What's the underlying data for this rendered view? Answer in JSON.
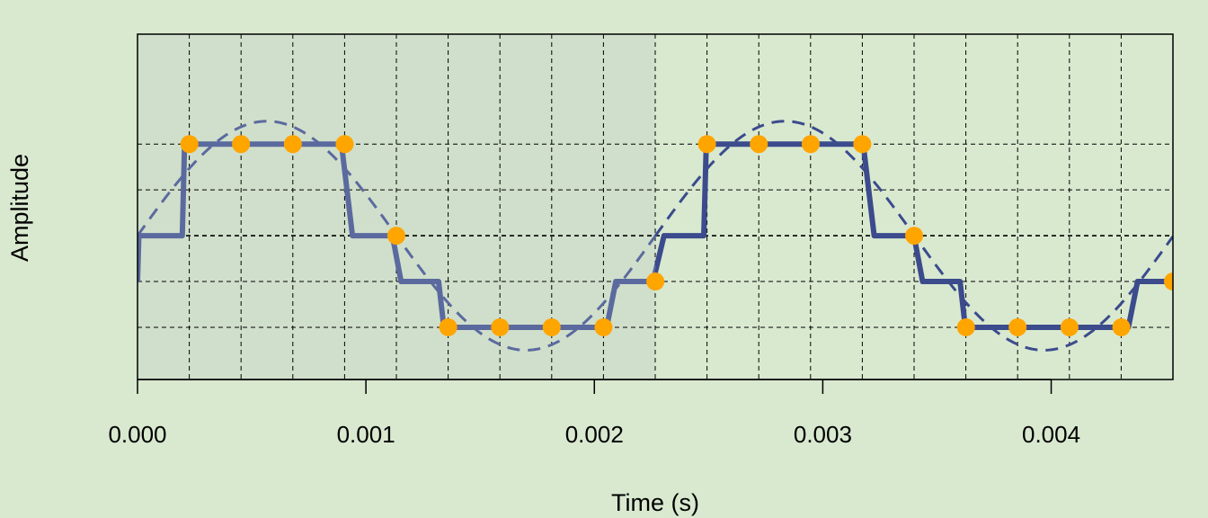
{
  "chart_data": {
    "type": "line",
    "title": "",
    "xlabel": "Time (s)",
    "ylabel": "Amplitude",
    "xlim": [
      0.0,
      0.004533
    ],
    "ylim": [
      -3.14,
      4.4
    ],
    "x_ticks": [
      0.0,
      0.001,
      0.002,
      0.003,
      0.004
    ],
    "x_tick_labels": [
      "0.000",
      "0.001",
      "0.002",
      "0.003",
      "0.004"
    ],
    "quantization_levels": [
      -2,
      -1,
      0,
      1,
      2
    ],
    "grid": true,
    "legend": "none",
    "shaded_interval": [
      0.0,
      0.002267
    ],
    "colors": {
      "background": "#d9e9d0",
      "shaded_region": "#d0dfcb",
      "signal": "#3b4b8c",
      "signal_shaded": "#5b6a9e",
      "samples": "#ffa500",
      "grid": "#000000"
    },
    "series": [
      {
        "type": "dashed-line",
        "function": "sine",
        "amplitude": 2.5,
        "frequency_hz": 441,
        "x": [
          0.0,
          0.000113,
          0.000227,
          0.00034,
          0.000453,
          0.000567,
          0.00068,
          0.000793,
          0.000907,
          0.00102,
          0.001133,
          0.001247,
          0.00136,
          0.001473,
          0.001587,
          0.0017,
          0.001813,
          0.001927,
          0.00204,
          0.002153,
          0.002267,
          0.00238,
          0.002493,
          0.002607,
          0.00272,
          0.002833,
          0.002947,
          0.00306,
          0.003173,
          0.003287,
          0.0034,
          0.003513,
          0.003627,
          0.00374,
          0.003853,
          0.003967,
          0.00408,
          0.004193,
          0.004307,
          0.00442,
          0.004533
        ],
        "y": [
          0.0,
          0.77,
          1.47,
          2.02,
          2.38,
          2.5,
          2.38,
          2.02,
          1.47,
          0.77,
          0.0,
          -0.77,
          -1.47,
          -2.02,
          -2.38,
          -2.5,
          -2.38,
          -2.02,
          -1.47,
          -0.77,
          0.0,
          0.77,
          1.47,
          2.02,
          2.38,
          2.5,
          2.38,
          2.02,
          1.47,
          0.77,
          0.0,
          -0.77,
          -1.47,
          -2.02,
          -2.38,
          -2.5,
          -2.38,
          -2.02,
          -1.47,
          -0.77,
          0.0
        ]
      },
      {
        "type": "quantized-step",
        "x": [
          0.0,
          5.8e-06,
          0.000196,
          0.000206,
          0.000893,
          0.000941,
          0.001116,
          0.001154,
          0.001318,
          0.001341,
          0.002054,
          0.002094,
          0.002257,
          0.002305,
          0.002479,
          0.00249,
          0.003177,
          0.003225,
          0.003399,
          0.003437,
          0.003601,
          0.003624,
          0.004338,
          0.004378,
          0.004533
        ],
        "y": [
          -1,
          0,
          0,
          2,
          2,
          0,
          0,
          -1,
          -1,
          -2,
          -2,
          -1,
          -1,
          0,
          0,
          2,
          2,
          0,
          0,
          -1,
          -1,
          -2,
          -2,
          -1,
          -1
        ]
      },
      {
        "type": "samples",
        "x": [
          0.000227,
          0.000453,
          0.00068,
          0.000907,
          0.001133,
          0.00136,
          0.001587,
          0.001813,
          0.00204,
          0.002267,
          0.002493,
          0.00272,
          0.002947,
          0.003173,
          0.0034,
          0.003627,
          0.003853,
          0.00408,
          0.004307,
          0.004533
        ],
        "y": [
          2,
          2,
          2,
          2,
          0,
          -2,
          -2,
          -2,
          -2,
          -1,
          2,
          2,
          2,
          2,
          0,
          -2,
          -2,
          -2,
          -2,
          -1
        ]
      }
    ]
  }
}
